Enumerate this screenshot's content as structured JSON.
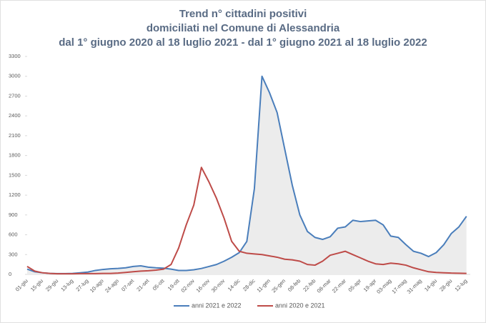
{
  "chart_data": {
    "type": "line",
    "title": [
      "Trend n° cittadini positivi",
      "domiciliati nel Comune di Alessandria",
      "dal 1° giugno 2020 al 18 luglio 2021 - dal 1° giugno 2021 al 18 luglio 2022"
    ],
    "categories": [
      "01-giu",
      null,
      "15-giu",
      null,
      "29-giu",
      null,
      "13-lug",
      null,
      "27-lug",
      null,
      "10-ago",
      null,
      "24-ago",
      null,
      "07-set",
      null,
      "21-set",
      null,
      "05-ott",
      null,
      "19-ott",
      null,
      "02-nov",
      null,
      "16-nov",
      null,
      "30-nov",
      null,
      "14-dic",
      null,
      "28-dic",
      null,
      "11-gen",
      null,
      "25-gen",
      null,
      "08-feb",
      null,
      "22-feb",
      null,
      "08-mar",
      null,
      "22-mar",
      null,
      "05-apr",
      null,
      "19-apr",
      null,
      "03-mag",
      null,
      "17-mag",
      null,
      "31-mag",
      null,
      "14-giu",
      null,
      "28-giu",
      null,
      "12-lug"
    ],
    "series": [
      {
        "name": "anni 2021 e 2022",
        "color": "#4a7ebb",
        "values": [
          80,
          40,
          25,
          15,
          12,
          12,
          15,
          25,
          35,
          60,
          75,
          85,
          90,
          100,
          120,
          130,
          110,
          100,
          95,
          80,
          60,
          60,
          70,
          90,
          120,
          150,
          200,
          260,
          330,
          500,
          1300,
          3000,
          2750,
          2450,
          1900,
          1350,
          900,
          650,
          560,
          530,
          570,
          700,
          720,
          820,
          800,
          810,
          820,
          750,
          580,
          560,
          450,
          350,
          320,
          270,
          330,
          450,
          620,
          720,
          880
        ]
      },
      {
        "name": "anni 2020 e 2021",
        "color": "#be4b48",
        "values": [
          120,
          50,
          25,
          15,
          10,
          10,
          10,
          12,
          12,
          12,
          15,
          15,
          20,
          30,
          40,
          50,
          55,
          65,
          80,
          150,
          400,
          750,
          1050,
          1620,
          1400,
          1150,
          850,
          500,
          350,
          320,
          310,
          300,
          280,
          260,
          230,
          220,
          200,
          150,
          140,
          200,
          290,
          320,
          350,
          300,
          250,
          200,
          160,
          150,
          170,
          160,
          140,
          100,
          70,
          40,
          30,
          25,
          20,
          18,
          15
        ]
      }
    ],
    "ylim": [
      0,
      3300
    ],
    "yticks": [
      0,
      300,
      600,
      900,
      1200,
      1500,
      1800,
      2100,
      2400,
      2700,
      3000,
      3300
    ],
    "grid": false,
    "legend": "bottom"
  }
}
